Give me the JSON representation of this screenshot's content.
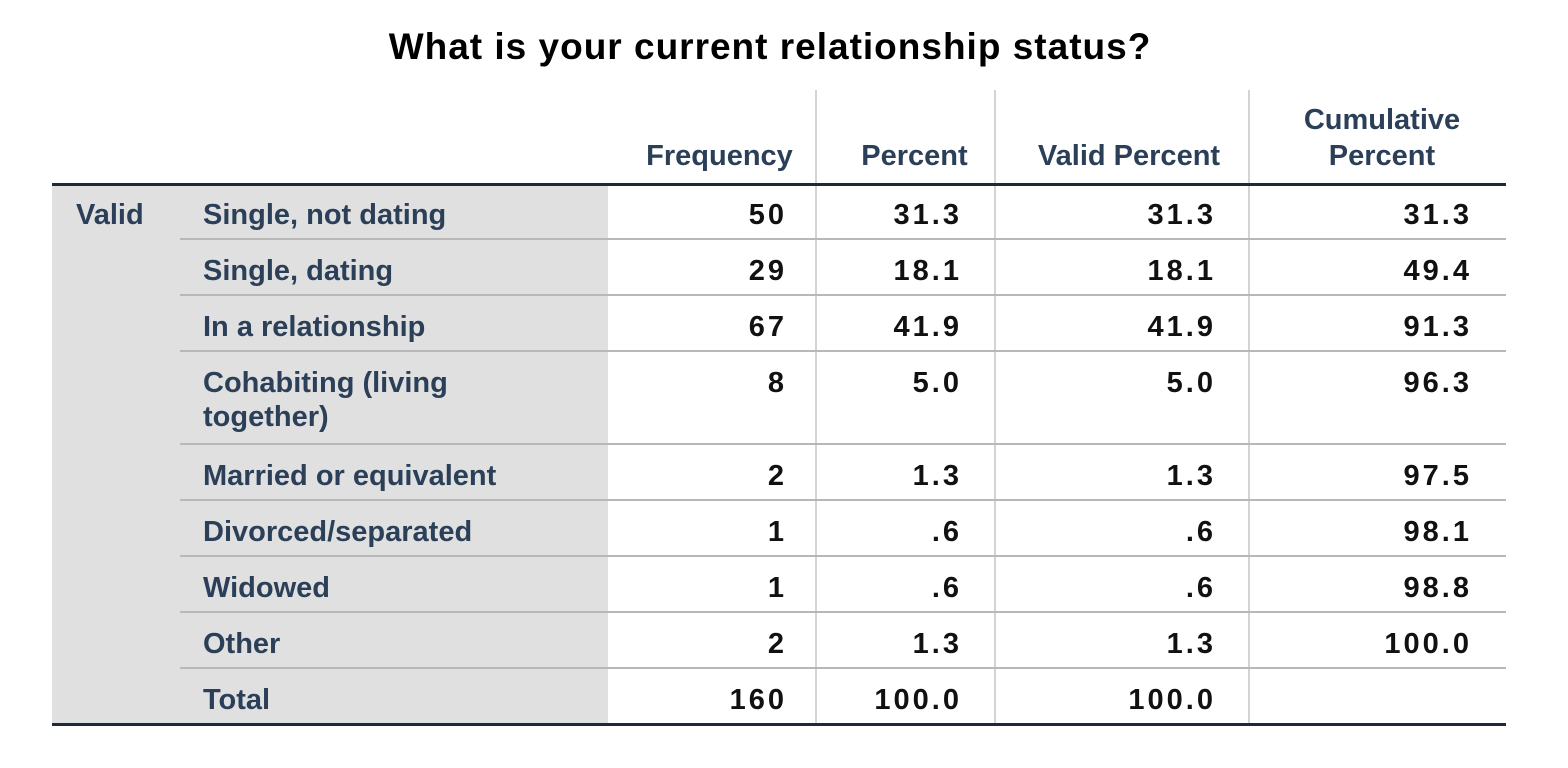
{
  "title": "What is your current relationship status?",
  "table": {
    "columns": [
      "Frequency",
      "Percent",
      "Valid Percent",
      "Cumulative Percent"
    ],
    "cumulative_header_line1": "Cumulative",
    "cumulative_header_line2": "Percent",
    "group_label": "Valid",
    "rows": [
      {
        "label": "Single, not dating",
        "frequency": "50",
        "percent": "31.3",
        "valid_percent": "31.3",
        "cumulative_percent": "31.3"
      },
      {
        "label": "Single, dating",
        "frequency": "29",
        "percent": "18.1",
        "valid_percent": "18.1",
        "cumulative_percent": "49.4"
      },
      {
        "label": "In a relationship",
        "frequency": "67",
        "percent": "41.9",
        "valid_percent": "41.9",
        "cumulative_percent": "91.3"
      },
      {
        "label": "Cohabiting (living",
        "label_line2": "together)",
        "frequency": "8",
        "percent": "5.0",
        "valid_percent": "5.0",
        "cumulative_percent": "96.3"
      },
      {
        "label": "Married or equivalent",
        "frequency": "2",
        "percent": "1.3",
        "valid_percent": "1.3",
        "cumulative_percent": "97.5"
      },
      {
        "label": "Divorced/separated",
        "frequency": "1",
        "percent": ".6",
        "valid_percent": ".6",
        "cumulative_percent": "98.1"
      },
      {
        "label": "Widowed",
        "frequency": "1",
        "percent": ".6",
        "valid_percent": ".6",
        "cumulative_percent": "98.8"
      },
      {
        "label": "Other",
        "frequency": "2",
        "percent": "1.3",
        "valid_percent": "1.3",
        "cumulative_percent": "100.0"
      },
      {
        "label": "Total",
        "frequency": "160",
        "percent": "100.0",
        "valid_percent": "100.0",
        "cumulative_percent": ""
      }
    ]
  },
  "colors": {
    "label_text": "#2b4058",
    "number_text": "#111111",
    "label_shade": "#e0e0e0",
    "rule_dark": "#1e2a38",
    "rule_light": "#b8b8b8"
  }
}
